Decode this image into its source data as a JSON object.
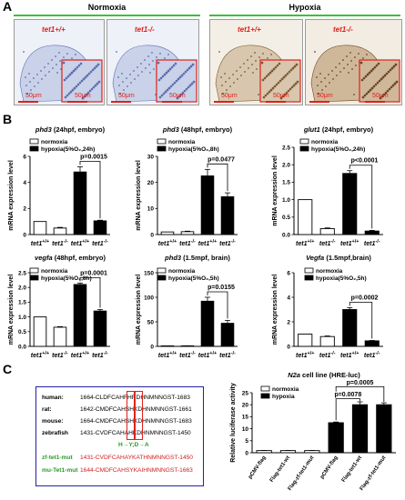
{
  "panel_a": {
    "label": "A",
    "normoxia_title": "Normoxia",
    "hypoxia_title": "Hypoxia",
    "genotypes": [
      "tet1+/+",
      "tet1-/-",
      "tet1+/+",
      "tet1-/-"
    ],
    "scale_text": "50μm"
  },
  "panel_b": {
    "label": "B"
  },
  "panel_c": {
    "label": "C",
    "sequences": [
      {
        "species": "human:",
        "seq": "1664-CLDFCAHFHRDHNMNNGST-1683"
      },
      {
        "species": "rat:",
        "seq": "1642-CMDFCAHSHKDHNMNNGST-1661"
      },
      {
        "species": "mouse:",
        "seq": "1664-CMDFCAHSHKDHNMNNGST-1683"
      },
      {
        "species": "zebrafish",
        "seq": "1431-CVDFCAHAHKDHNMNNGST-1450"
      },
      {
        "species": "",
        "seq": "H→Y;D→A"
      },
      {
        "species": "zf-tet1-mut",
        "seq": "1431-CVDFCAHAYKATHNMNNGST-1450"
      },
      {
        "species": "mu-Tet1-mut",
        "seq": "1644-CMDFCAHSYKAIHNMNNGST-1663"
      }
    ]
  },
  "legend": {
    "normoxia": "normoxia",
    "hypoxia_24h": "hypoxia(5%O₂,24h)",
    "hypoxia_8h": "hypoxia(5%O₂,8h)",
    "hypoxia_5h": "hypoxia(5%O₂,5h)",
    "hypoxia": "hypoxia"
  },
  "chart_data": [
    {
      "type": "bar",
      "title": "phd3 (24hpf, embryo)",
      "ylabel": "mRNA expression level",
      "ylim": [
        0,
        6
      ],
      "yticks": [
        0,
        2,
        4,
        6
      ],
      "categories": [
        "tet1+/+",
        "tet1-/-",
        "tet1+/+",
        "tet1-/-"
      ],
      "values": [
        1.0,
        0.5,
        4.8,
        1.05
      ],
      "errors": [
        0,
        0.05,
        0.4,
        0.05
      ],
      "conditions": [
        "normoxia",
        "normoxia",
        "hypoxia",
        "hypoxia"
      ],
      "annotation": "p=0.0015"
    },
    {
      "type": "bar",
      "title": "phd3 (48hpf, embryo)",
      "ylabel": "mRNA expression level",
      "ylim": [
        0,
        30
      ],
      "yticks": [
        0,
        10,
        20,
        30
      ],
      "categories": [
        "tet1+/+",
        "tet1-/-",
        "tet1+/+",
        "tet1-/-"
      ],
      "values": [
        1.0,
        1.1,
        22.5,
        14.5
      ],
      "errors": [
        0,
        0.2,
        2.5,
        1.5
      ],
      "conditions": [
        "normoxia",
        "normoxia",
        "hypoxia",
        "hypoxia"
      ],
      "annotation": "p=0.0477"
    },
    {
      "type": "bar",
      "title": "glut1 (24hpf, embryo)",
      "ylabel": "mRNA expression level",
      "ylim": [
        0,
        2.5
      ],
      "yticks": [
        0.0,
        0.5,
        1.0,
        1.5,
        2.0,
        2.5
      ],
      "categories": [
        "tet1+/+",
        "tet1-/-",
        "tet1+/+",
        "tet1-/-"
      ],
      "values": [
        1.0,
        0.17,
        1.75,
        0.1
      ],
      "errors": [
        0,
        0.02,
        0.08,
        0.02
      ],
      "conditions": [
        "normoxia",
        "normoxia",
        "hypoxia",
        "hypoxia"
      ],
      "annotation": "p<0.0001"
    },
    {
      "type": "bar",
      "title": "vegfa (48hpf, embryo)",
      "ylabel": "mRNA expression level",
      "ylim": [
        0,
        2.5
      ],
      "yticks": [
        0.0,
        0.5,
        1.0,
        1.5,
        2.0,
        2.5
      ],
      "categories": [
        "tet1+/+",
        "tet1-/-",
        "tet1+/+",
        "tet1-/-"
      ],
      "values": [
        1.0,
        0.65,
        2.1,
        1.2
      ],
      "errors": [
        0,
        0.02,
        0.05,
        0.05
      ],
      "conditions": [
        "normoxia",
        "normoxia",
        "hypoxia",
        "hypoxia"
      ],
      "annotation": "p=0.0001"
    },
    {
      "type": "bar",
      "title": "phd3 (1.5mpf, brain)",
      "ylabel": "mRNA expression level",
      "ylim": [
        0,
        150
      ],
      "yticks": [
        0,
        50,
        100,
        150
      ],
      "categories": [
        "tet1+/+",
        "tet1-/-",
        "tet1+/+",
        "tet1-/-"
      ],
      "values": [
        1.0,
        1.0,
        92,
        47
      ],
      "errors": [
        0,
        0.3,
        8,
        6
      ],
      "conditions": [
        "normoxia",
        "normoxia",
        "hypoxia",
        "hypoxia"
      ],
      "annotation": "p=0.0155"
    },
    {
      "type": "bar",
      "title": "Vegfa (1.5mpf,brain)",
      "ylabel": "mRNA expression level",
      "ylim": [
        0,
        6
      ],
      "yticks": [
        0,
        2,
        4,
        6
      ],
      "categories": [
        "tet1+/+",
        "tet1-/-",
        "tet1+/+",
        "tet1-/-"
      ],
      "values": [
        1.0,
        0.8,
        3.0,
        0.45
      ],
      "errors": [
        0,
        0.05,
        0.15,
        0.03
      ],
      "conditions": [
        "normoxia",
        "normoxia",
        "hypoxia",
        "hypoxia"
      ],
      "annotation": "p=0.0002"
    },
    {
      "type": "bar",
      "title": "N2a cell line (HRE-luc)",
      "ylabel": "Relative luciferase activity",
      "ylim": [
        0,
        25
      ],
      "yticks": [
        0,
        5,
        10,
        15,
        20,
        25
      ],
      "categories": [
        "pCMV-flag",
        "Flag-tet1-wt",
        "Flag-zf-tet1-mut",
        "pCMV-flag",
        "Flag-tet1-wt",
        "Flag-zf-tet1-mut"
      ],
      "values": [
        0.9,
        0.9,
        0.9,
        12.5,
        20.0,
        20.0
      ],
      "errors": [
        0.05,
        0.05,
        0.05,
        0.3,
        1.2,
        0.8
      ],
      "conditions": [
        "normoxia",
        "normoxia",
        "normoxia",
        "hypoxia",
        "hypoxia",
        "hypoxia"
      ],
      "annotations": [
        "p=0.0078",
        "p=0.0005"
      ]
    }
  ]
}
